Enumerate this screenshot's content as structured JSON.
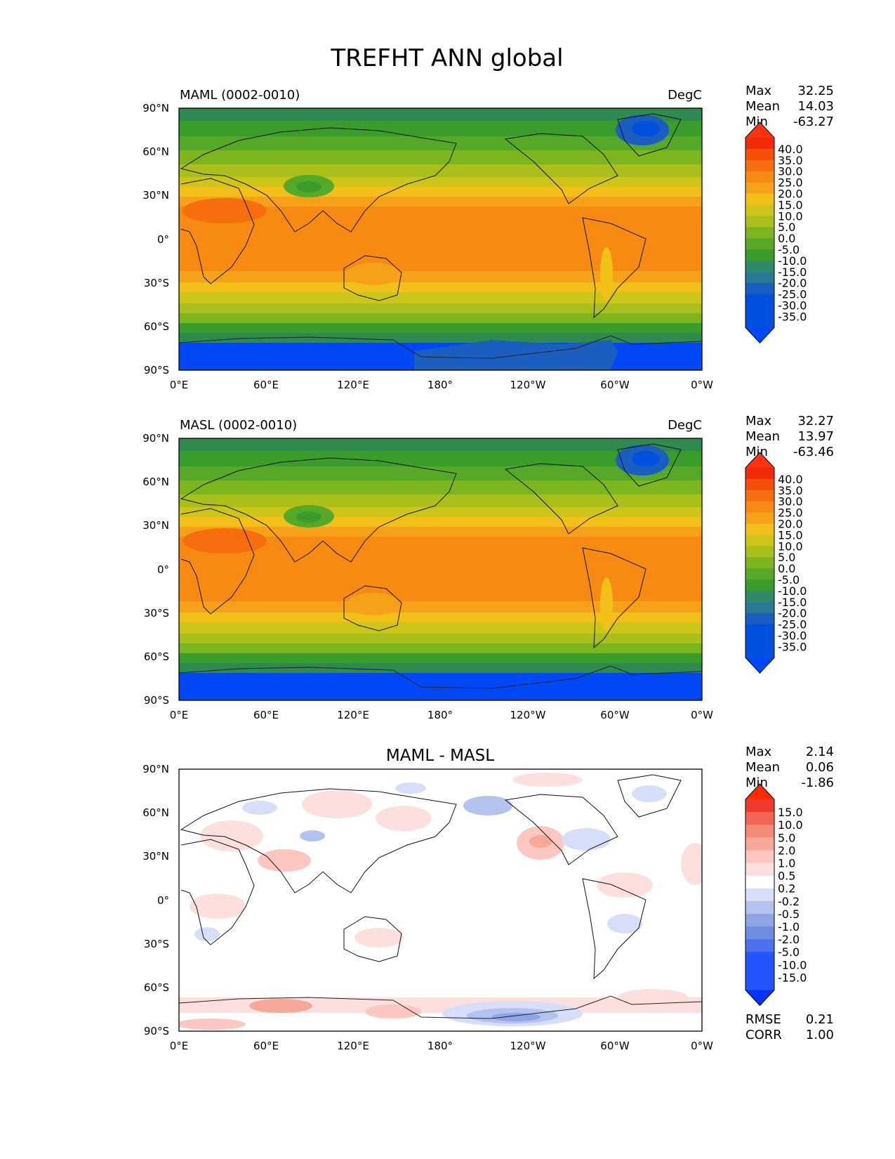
{
  "figure_title": "TREFHT ANN global",
  "x_ticks": [
    "0°E",
    "60°E",
    "120°E",
    "180°",
    "120°W",
    "60°W",
    "0°W"
  ],
  "y_ticks": [
    "90°N",
    "60°N",
    "30°N",
    "0°",
    "30°S",
    "60°S",
    "90°S"
  ],
  "chart_data": [
    {
      "type": "heatmap",
      "title": "MAML (0002-0010)",
      "units": "DegC",
      "stats": {
        "Max": "32.25",
        "Mean": "14.03",
        "Min": "-63.27"
      },
      "colorbar_levels": [
        "40.0",
        "35.0",
        "30.0",
        "25.0",
        "20.0",
        "15.0",
        "10.0",
        "5.0",
        "0.0",
        "-5.0",
        "-10.0",
        "-15.0",
        "-20.0",
        "-25.0",
        "-30.0",
        "-35.0"
      ],
      "xlim": [
        0,
        360
      ],
      "ylim": [
        -90,
        90
      ]
    },
    {
      "type": "heatmap",
      "title": "MASL (0002-0010)",
      "units": "DegC",
      "stats": {
        "Max": "32.27",
        "Mean": "13.97",
        "Min": "-63.46"
      },
      "colorbar_levels": [
        "40.0",
        "35.0",
        "30.0",
        "25.0",
        "20.0",
        "15.0",
        "10.0",
        "5.0",
        "0.0",
        "-5.0",
        "-10.0",
        "-15.0",
        "-20.0",
        "-25.0",
        "-30.0",
        "-35.0"
      ],
      "xlim": [
        0,
        360
      ],
      "ylim": [
        -90,
        90
      ]
    },
    {
      "type": "heatmap",
      "title": "MAML - MASL",
      "units": "",
      "stats": {
        "Max": "2.14",
        "Mean": "0.06",
        "Min": "-1.86"
      },
      "colorbar_levels": [
        "15.0",
        "10.0",
        "5.0",
        "2.0",
        "1.0",
        "0.5",
        "0.2",
        "-0.2",
        "-0.5",
        "-1.0",
        "-2.0",
        "-5.0",
        "-10.0",
        "-15.0"
      ],
      "extra_stats": {
        "RMSE": "0.21",
        "CORR": "1.00"
      },
      "xlim": [
        0,
        360
      ],
      "ylim": [
        -90,
        90
      ]
    }
  ],
  "colors": {
    "temp_scale": [
      "#0047f5",
      "#0050e0",
      "#1a5fc0",
      "#2a7a96",
      "#2f8a6a",
      "#3a9c2a",
      "#55a828",
      "#7db51f",
      "#a8bf1c",
      "#cdc51a",
      "#f3c01a",
      "#f6a11a",
      "#f78a12",
      "#f66e0e",
      "#f4500a",
      "#f22a06",
      "#ff3311"
    ],
    "diff_scale": [
      "#0033ff",
      "#2255ff",
      "#4a72ee",
      "#6d8de0",
      "#8ea6e6",
      "#b4c2f0",
      "#d6defa",
      "#ffffff",
      "#fde0de",
      "#fbc7c0",
      "#f7a898",
      "#f48a78",
      "#f26555",
      "#ee3a2c",
      "#ff2a00"
    ]
  }
}
